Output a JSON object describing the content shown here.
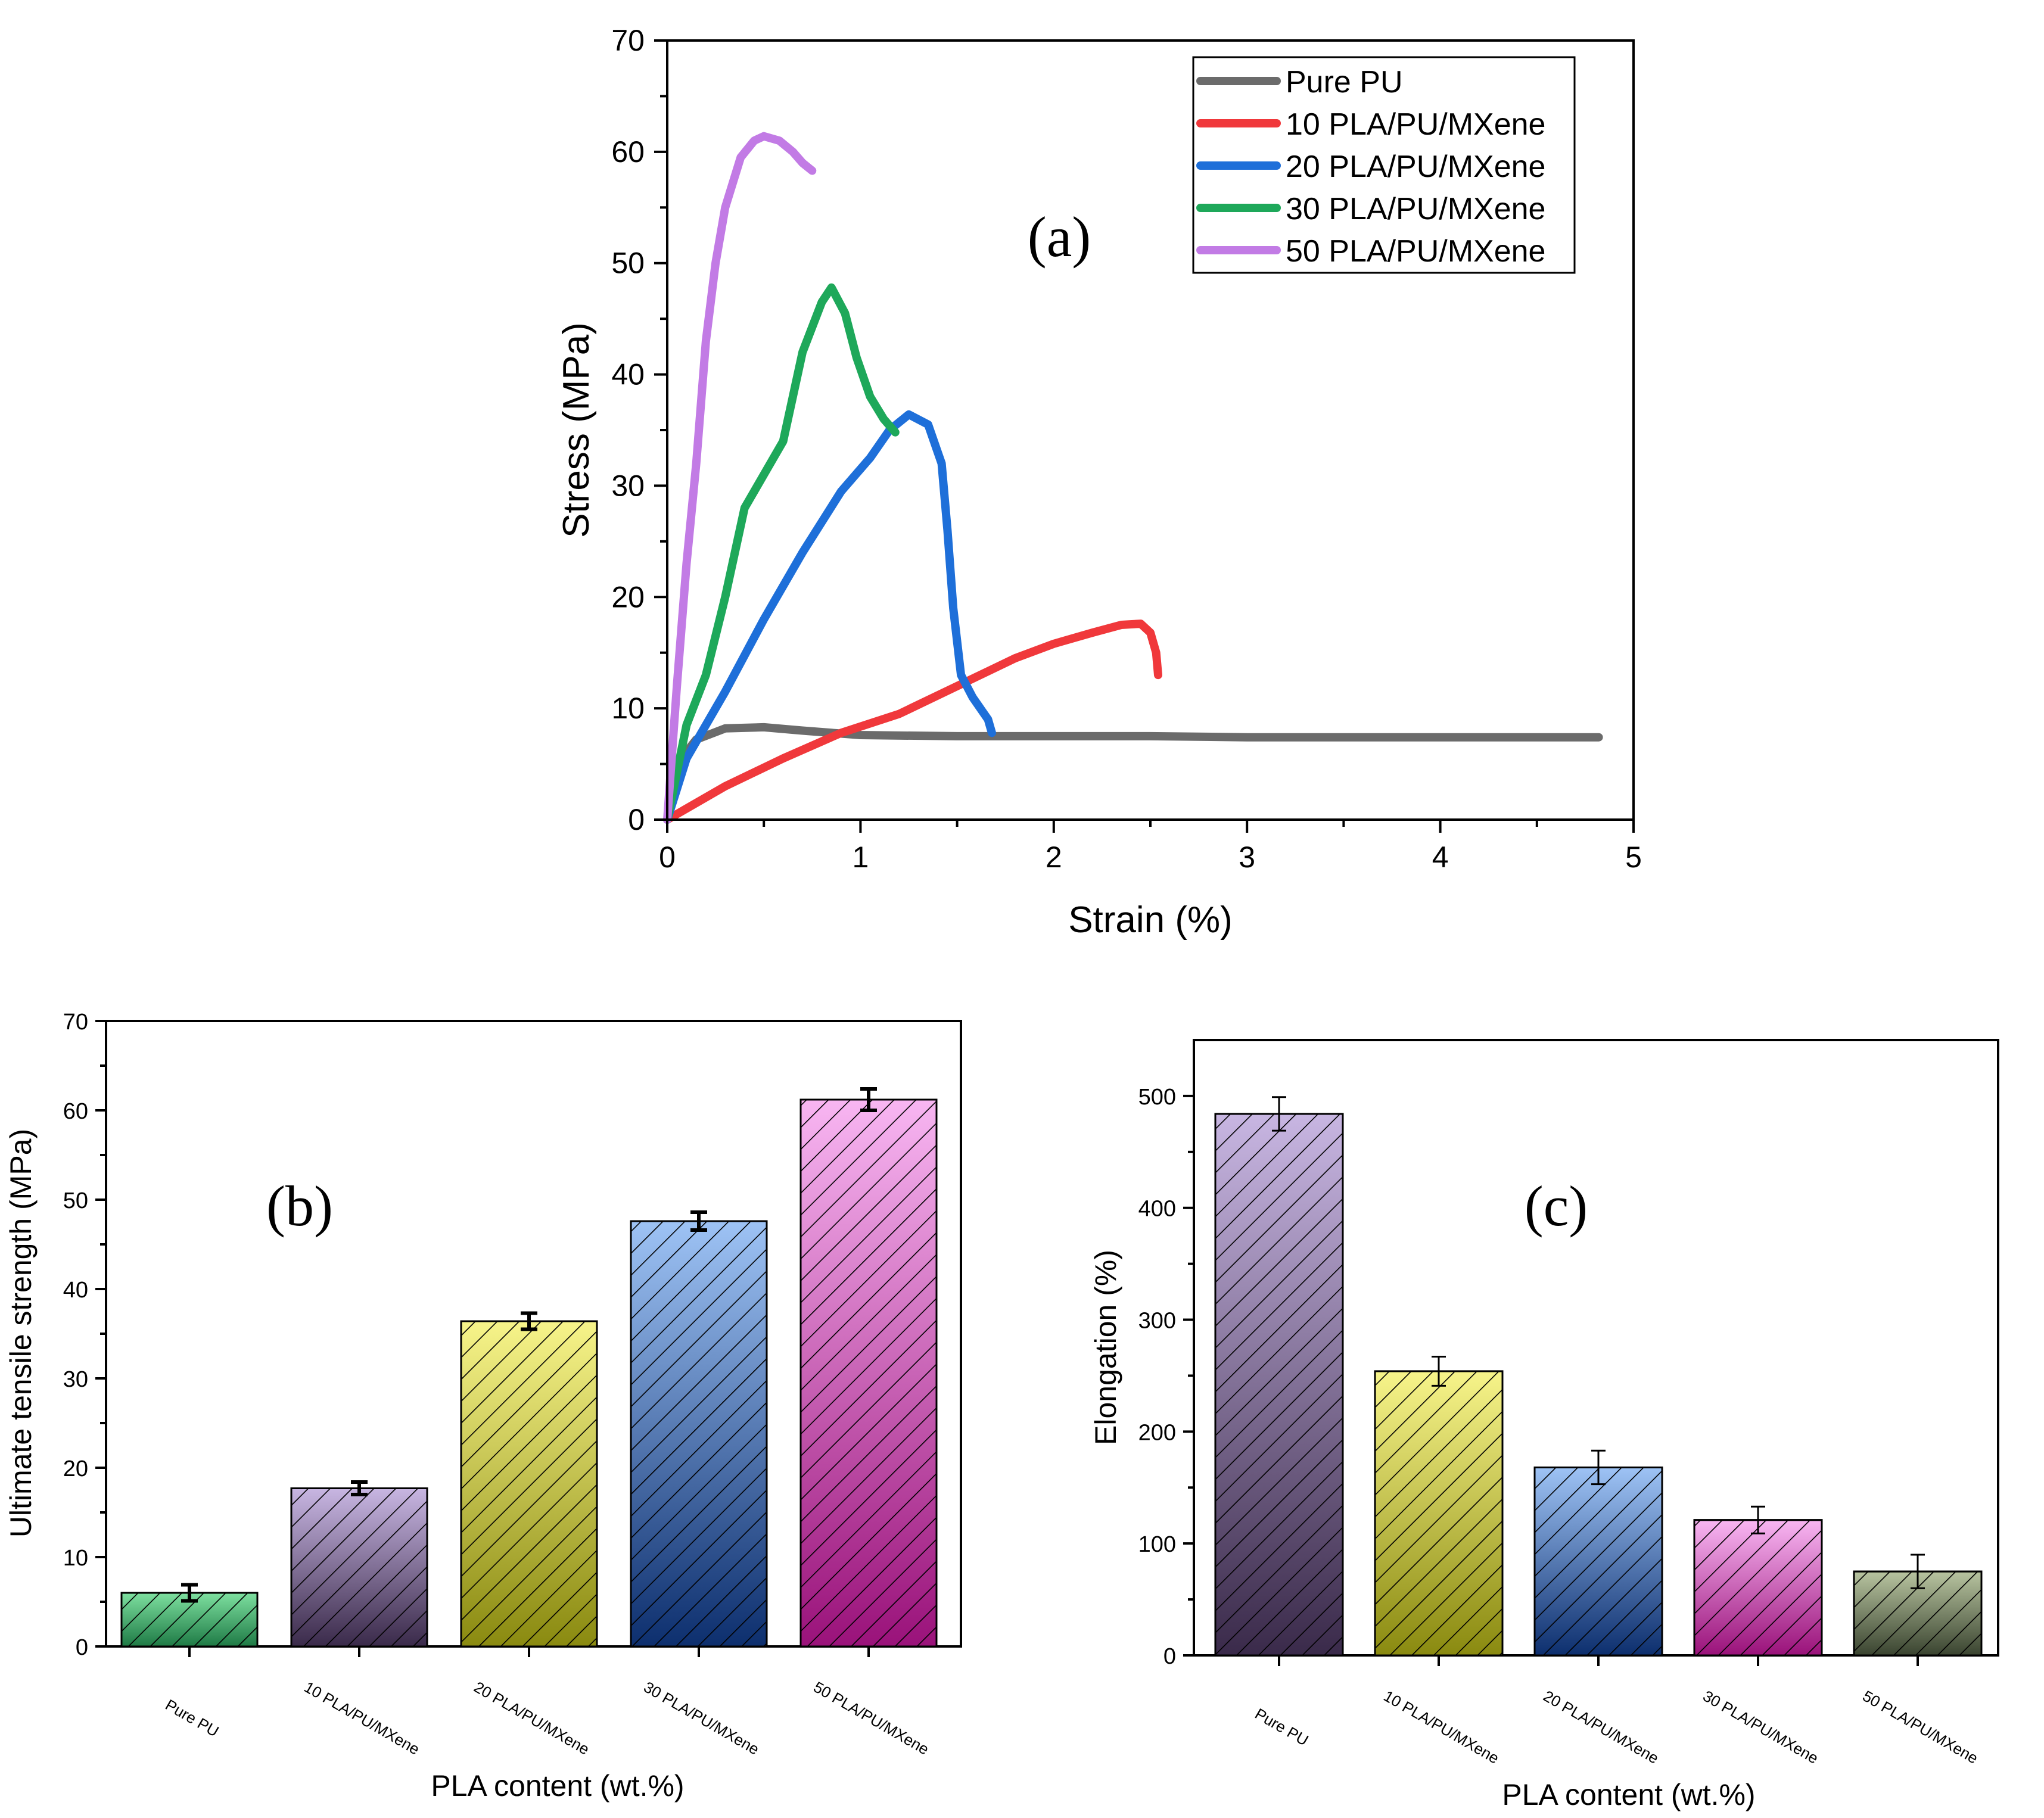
{
  "chart_data": [
    {
      "type": "line",
      "panel_label": "(a)",
      "xlabel": "Strain (%)",
      "ylabel": "Stress (MPa)",
      "xlim": [
        0,
        5
      ],
      "ylim": [
        0,
        70
      ],
      "xticks": [
        "0",
        "1",
        "2",
        "3",
        "4",
        "5"
      ],
      "yticks": [
        "0",
        "10",
        "20",
        "30",
        "40",
        "50",
        "60",
        "70"
      ],
      "legend_position": "top-right",
      "series": [
        {
          "name": "Pure PU",
          "color": "#6b6b6b",
          "x": [
            0,
            0.05,
            0.15,
            0.3,
            0.5,
            0.7,
            1.0,
            1.5,
            2.0,
            2.5,
            3.0,
            3.5,
            4.0,
            4.5,
            4.82
          ],
          "y": [
            0,
            5.0,
            7.2,
            8.2,
            8.3,
            8.0,
            7.6,
            7.5,
            7.5,
            7.5,
            7.4,
            7.4,
            7.4,
            7.4,
            7.4
          ]
        },
        {
          "name": "10 PLA/PU/MXene",
          "color": "#f0383b",
          "x": [
            0,
            0.3,
            0.6,
            0.9,
            1.2,
            1.5,
            1.8,
            2.0,
            2.2,
            2.35,
            2.45,
            2.5,
            2.53,
            2.54
          ],
          "y": [
            0,
            3.0,
            5.5,
            7.8,
            9.5,
            12.0,
            14.5,
            15.8,
            16.8,
            17.5,
            17.6,
            16.8,
            15.0,
            13.0
          ]
        },
        {
          "name": "20 PLA/PU/MXene",
          "color": "#1e6fd9",
          "x": [
            0,
            0.1,
            0.3,
            0.5,
            0.7,
            0.9,
            1.05,
            1.15,
            1.25,
            1.35,
            1.42,
            1.45,
            1.48,
            1.52,
            1.58,
            1.66,
            1.68
          ],
          "y": [
            0,
            5.5,
            11.5,
            18.0,
            24.0,
            29.5,
            32.5,
            35.0,
            36.4,
            35.5,
            32.0,
            26.0,
            19.0,
            13.0,
            11.0,
            9.0,
            7.8
          ]
        },
        {
          "name": "30 PLA/PU/MXene",
          "color": "#1ea85a",
          "x": [
            0,
            0.1,
            0.2,
            0.3,
            0.4,
            0.6,
            0.7,
            0.8,
            0.85,
            0.92,
            0.98,
            1.05,
            1.12,
            1.18
          ],
          "y": [
            0,
            8.5,
            13.0,
            20.0,
            28.0,
            34.0,
            42.0,
            46.5,
            47.8,
            45.5,
            41.5,
            38.0,
            36.0,
            34.8
          ]
        },
        {
          "name": "50 PLA/PU/MXene",
          "color": "#c27be5",
          "x": [
            0,
            0.05,
            0.1,
            0.15,
            0.2,
            0.25,
            0.3,
            0.38,
            0.45,
            0.5,
            0.58,
            0.65,
            0.7,
            0.75
          ],
          "y": [
            0,
            12.0,
            23.0,
            32.0,
            43.0,
            50.0,
            55.0,
            59.5,
            61.0,
            61.4,
            61.0,
            60.0,
            59.0,
            58.3
          ]
        }
      ]
    },
    {
      "type": "bar",
      "panel_label": "(b)",
      "xlabel": "PLA content (wt.%)",
      "ylabel": "Ultimate tensile strength (MPa)",
      "ylim": [
        0,
        70
      ],
      "yticks": [
        "0",
        "10",
        "20",
        "30",
        "40",
        "50",
        "60",
        "70"
      ],
      "categories": [
        "Pure PU",
        "10 PLA/PU/MXene",
        "20 PLA/PU/MXene",
        "30 PLA/PU/MXene",
        "50 PLA/PU/MXene"
      ],
      "values": [
        6.0,
        17.7,
        36.4,
        47.6,
        61.2
      ],
      "errors": [
        0.9,
        0.7,
        0.9,
        1.0,
        1.2
      ],
      "bar_colors": [
        [
          "#7ee0a0",
          "#1e7a45"
        ],
        [
          "#c8b6e2",
          "#3a2a4a"
        ],
        [
          "#f7f48a",
          "#8a8a10"
        ],
        [
          "#9ec3f5",
          "#0d2f6e"
        ],
        [
          "#f8b6f2",
          "#9a127a"
        ]
      ]
    },
    {
      "type": "bar",
      "panel_label": "(c)",
      "xlabel": "PLA content (wt.%)",
      "ylabel": "Elongation (%)",
      "ylim": [
        0,
        550
      ],
      "yticks": [
        "0",
        "100",
        "200",
        "300",
        "400",
        "500"
      ],
      "categories": [
        "Pure PU",
        "10 PLA/PU/MXene",
        "20 PLA/PU/MXene",
        "30 PLA/PU/MXene",
        "50 PLA/PU/MXene"
      ],
      "values": [
        484,
        254,
        168,
        121,
        75
      ],
      "errors": [
        15,
        13,
        15,
        12,
        15
      ],
      "bar_colors": [
        [
          "#c8b6e2",
          "#3a2a4a"
        ],
        [
          "#f7f48a",
          "#8a8a10"
        ],
        [
          "#9ec3f5",
          "#0d2f6e"
        ],
        [
          "#f8b6f2",
          "#9a127a"
        ],
        [
          "#b8c4a0",
          "#3a4430"
        ]
      ]
    }
  ]
}
